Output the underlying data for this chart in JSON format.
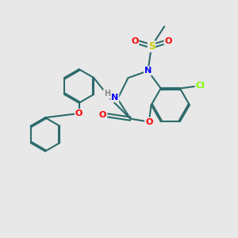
{
  "background_color": "#e8e8e8",
  "bond_color": "#2d6b6b",
  "atom_colors": {
    "N": "#0000ff",
    "O": "#ff0000",
    "S": "#cccc00",
    "Cl": "#7fff00",
    "C": "#000000",
    "H": "#888888"
  },
  "figsize": [
    3.0,
    3.0
  ],
  "dpi": 100
}
